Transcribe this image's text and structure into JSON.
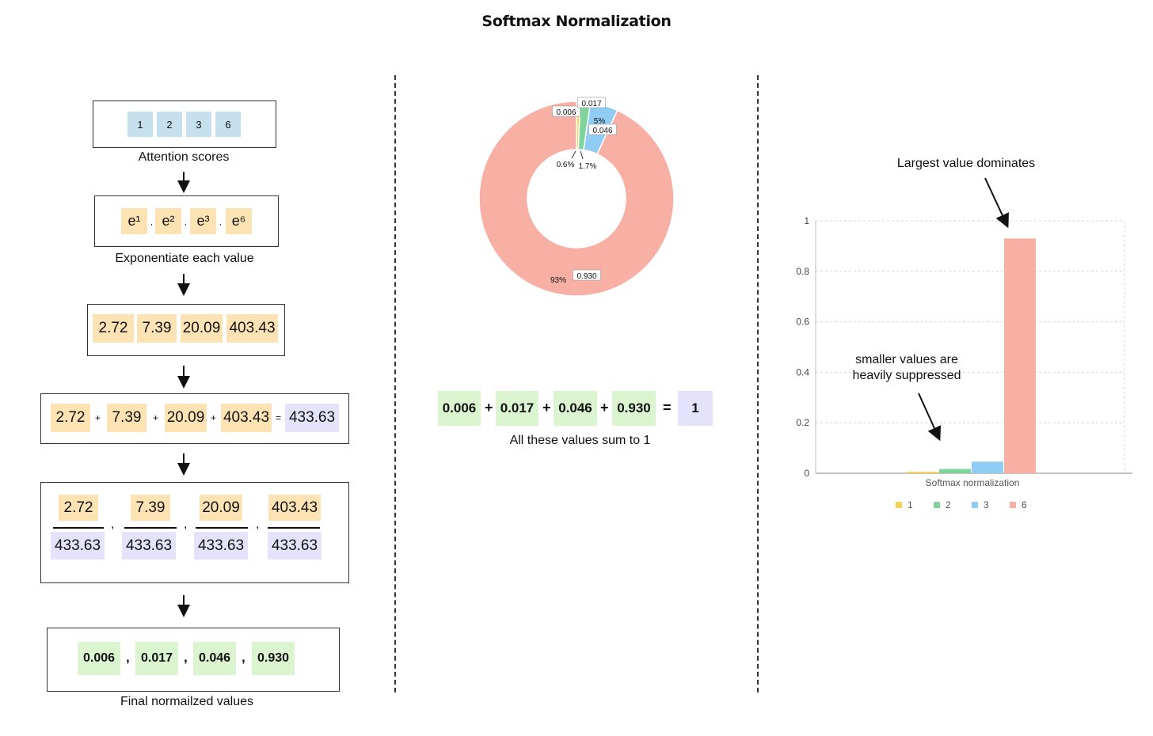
{
  "title": "Softmax Normalization",
  "colors": {
    "blue_chip": "#c6e0ee",
    "orange_chip": "#fde3b3",
    "purple_chip": "#e5e3fb",
    "green_chip": "#dbf5d1",
    "series_1": "#f7d154",
    "series_2": "#7fd49b",
    "series_3": "#90ccf4",
    "series_6": "#f8b0a4"
  },
  "flow": {
    "scores": [
      "1",
      "2",
      "3",
      "6"
    ],
    "scores_caption": "Attention scores",
    "exps": [
      "e¹",
      "e²",
      "e³",
      "e⁶"
    ],
    "exps_sep": ",",
    "exps_caption": "Exponentiate each value",
    "exp_values": [
      "2.72",
      "7.39",
      "20.09",
      "403.43"
    ],
    "sum_terms": [
      "2.72",
      "7.39",
      "20.09",
      "403.43"
    ],
    "plus": "+",
    "equals": "=",
    "sum_total": "433.63",
    "fractions": [
      {
        "num": "2.72",
        "den": "433.63"
      },
      {
        "num": "7.39",
        "den": "433.63"
      },
      {
        "num": "20.09",
        "den": "433.63"
      },
      {
        "num": "403.43",
        "den": "433.63"
      }
    ],
    "comma": ",",
    "final_values": [
      "0.006",
      "0.017",
      "0.046",
      "0.930"
    ],
    "final_caption": "Final normailzed values"
  },
  "sum_equation": {
    "terms": [
      "0.006",
      "0.017",
      "0.046",
      "0.930"
    ],
    "plus": "+",
    "equals": "=",
    "result": "1",
    "caption": "All these values sum to 1"
  },
  "annotations": {
    "largest": "Largest value dominates",
    "suppressed_line1": "smaller values are",
    "suppressed_line2": "heavily suppressed"
  },
  "chart_data": [
    {
      "type": "pie",
      "variant": "donut",
      "categories": [
        "1",
        "2",
        "3",
        "6"
      ],
      "values": [
        0.006,
        0.017,
        0.046,
        0.93
      ],
      "value_labels": [
        "0.006",
        "0.017",
        "0.046",
        "0.930"
      ],
      "percent_labels": [
        "0.6%",
        "1.7%",
        "5%",
        "93%"
      ]
    },
    {
      "type": "bar",
      "categories": [
        "Softmax normalization"
      ],
      "xlabel": "Softmax normalization",
      "ylim": [
        0,
        1
      ],
      "yticks": [
        "0",
        "0.2",
        "0.4",
        "0.6",
        "0.8",
        "1"
      ],
      "grid": true,
      "legend": "bottom",
      "series": [
        {
          "name": "1",
          "values": [
            0.006
          ]
        },
        {
          "name": "2",
          "values": [
            0.017
          ]
        },
        {
          "name": "3",
          "values": [
            0.046
          ]
        },
        {
          "name": "6",
          "values": [
            0.93
          ]
        }
      ]
    }
  ]
}
